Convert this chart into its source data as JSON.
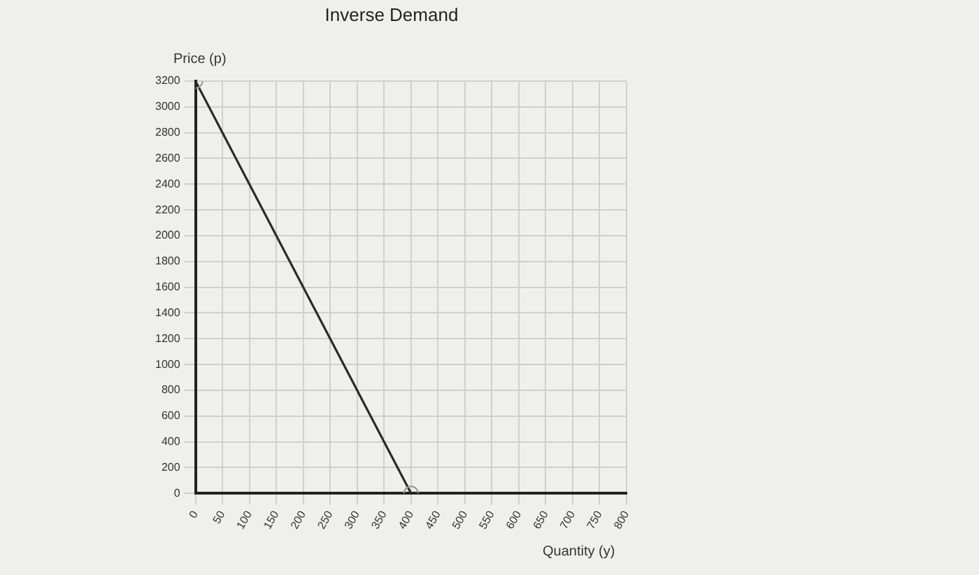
{
  "chart_data": {
    "type": "line",
    "title": "Inverse Demand",
    "xlabel": "Quantity (y)",
    "ylabel": "Price (p)",
    "x": [
      0,
      400
    ],
    "series": [
      {
        "color": "#2b2b2b",
        "values": [
          3200,
          0
        ]
      }
    ],
    "xlim": [
      0,
      800
    ],
    "xticks": [
      0,
      50,
      100,
      150,
      200,
      250,
      300,
      350,
      400,
      450,
      500,
      550,
      600,
      650,
      700,
      750,
      800
    ],
    "ylim": [
      0,
      3200
    ],
    "yticks": [
      0,
      200,
      400,
      600,
      800,
      1000,
      1200,
      1400,
      1600,
      1800,
      2000,
      2200,
      2400,
      2600,
      2800,
      3000,
      3200
    ],
    "grid": true,
    "legend": false,
    "marker": "circle",
    "line_style": "solid"
  }
}
